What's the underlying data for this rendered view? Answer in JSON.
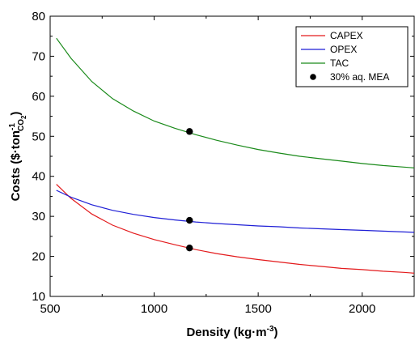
{
  "chart_data": {
    "type": "line",
    "xlabel": {
      "main": "Density (kg·m",
      "sup": "-3",
      "close": ")"
    },
    "ylabel": {
      "main": "Costs ($·ton",
      "sup": "-1",
      "sub": "CO",
      "subsub": "2",
      "close": ")"
    },
    "xlim": [
      500,
      2250
    ],
    "ylim": [
      10,
      80
    ],
    "xticks": [
      500,
      1000,
      1500,
      2000
    ],
    "yticks": [
      10,
      20,
      30,
      40,
      50,
      60,
      70,
      80
    ],
    "grid": false,
    "legend_position": "top-right",
    "series": [
      {
        "name": "CAPEX",
        "color": "#e31a1c",
        "x": [
          530,
          600,
          700,
          800,
          900,
          1000,
          1100,
          1200,
          1300,
          1400,
          1500,
          1600,
          1700,
          1800,
          1900,
          2000,
          2100,
          2200,
          2250
        ],
        "y": [
          38,
          34.5,
          30.6,
          27.8,
          25.8,
          24.2,
          22.9,
          21.7,
          20.7,
          19.9,
          19.2,
          18.6,
          18.0,
          17.5,
          17.0,
          16.7,
          16.3,
          16.0,
          15.8
        ]
      },
      {
        "name": "OPEX",
        "color": "#1f1fd6",
        "x": [
          530,
          600,
          700,
          800,
          900,
          1000,
          1100,
          1200,
          1300,
          1400,
          1500,
          1600,
          1700,
          1800,
          1900,
          2000,
          2100,
          2200,
          2250
        ],
        "y": [
          36.5,
          34.8,
          32.9,
          31.5,
          30.5,
          29.7,
          29.1,
          28.6,
          28.2,
          27.9,
          27.6,
          27.4,
          27.1,
          26.9,
          26.7,
          26.5,
          26.3,
          26.1,
          26.0
        ]
      },
      {
        "name": "TAC",
        "color": "#1a8a1a",
        "x": [
          530,
          600,
          700,
          800,
          900,
          1000,
          1100,
          1200,
          1300,
          1400,
          1500,
          1600,
          1700,
          1800,
          1900,
          2000,
          2100,
          2200,
          2250
        ],
        "y": [
          74.5,
          69.5,
          63.7,
          59.4,
          56.3,
          53.8,
          52.0,
          50.4,
          49.0,
          47.8,
          46.7,
          45.8,
          45.0,
          44.4,
          43.8,
          43.2,
          42.7,
          42.3,
          42.1
        ]
      }
    ],
    "markers": {
      "name": "30% aq. MEA",
      "color": "#000000",
      "points": [
        {
          "x": 1170,
          "y": 22.1
        },
        {
          "x": 1170,
          "y": 29.0
        },
        {
          "x": 1170,
          "y": 51.2
        }
      ]
    }
  }
}
